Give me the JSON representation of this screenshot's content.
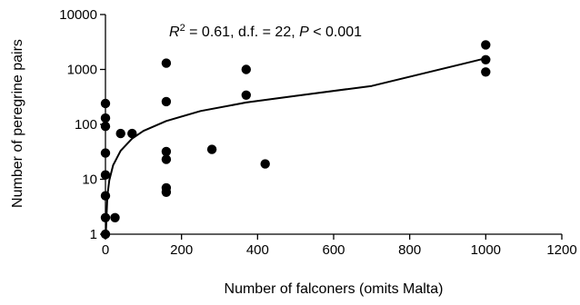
{
  "chart_data": {
    "type": "scatter",
    "title": "",
    "xlabel": "Number of falconers (omits Malta)",
    "ylabel": "Number of peregrine pairs",
    "xlim": [
      0,
      1200
    ],
    "ylim": [
      1,
      10000
    ],
    "y_scale": "log",
    "x_ticks": [
      0,
      200,
      400,
      600,
      800,
      1000,
      1200
    ],
    "x_tick_labels": [
      "0",
      "200",
      "400",
      "600",
      "800",
      "1000",
      "1200"
    ],
    "y_ticks": [
      1,
      10,
      100,
      1000,
      10000
    ],
    "y_tick_labels": [
      "1",
      "10",
      "100",
      "1000",
      "10000"
    ],
    "grid": false,
    "legend": "none",
    "annotation": {
      "r_symbol": "R",
      "r_exponent": "2",
      "r_value": " = 0.61, d.f. = 22, ",
      "p_symbol": "P",
      "p_value": " < 0.001"
    },
    "points": [
      {
        "x": 0,
        "y": 240
      },
      {
        "x": 0,
        "y": 130
      },
      {
        "x": 0,
        "y": 92
      },
      {
        "x": 0,
        "y": 30
      },
      {
        "x": 0,
        "y": 12
      },
      {
        "x": 0,
        "y": 5
      },
      {
        "x": 0,
        "y": 2
      },
      {
        "x": 0,
        "y": 1
      },
      {
        "x": 25,
        "y": 2
      },
      {
        "x": 40,
        "y": 68
      },
      {
        "x": 70,
        "y": 68
      },
      {
        "x": 160,
        "y": 1300
      },
      {
        "x": 160,
        "y": 260
      },
      {
        "x": 160,
        "y": 32
      },
      {
        "x": 160,
        "y": 23
      },
      {
        "x": 160,
        "y": 7
      },
      {
        "x": 160,
        "y": 5.8
      },
      {
        "x": 280,
        "y": 35
      },
      {
        "x": 370,
        "y": 1000
      },
      {
        "x": 370,
        "y": 340
      },
      {
        "x": 420,
        "y": 19
      },
      {
        "x": 1000,
        "y": 2800
      },
      {
        "x": 1000,
        "y": 1500
      },
      {
        "x": 1000,
        "y": 900
      }
    ],
    "fit_curve": {
      "x": [
        1,
        5,
        10,
        20,
        40,
        70,
        100,
        160,
        250,
        370,
        500,
        700,
        1000
      ],
      "y": [
        1,
        5,
        9.5,
        18,
        33,
        55,
        76,
        115,
        175,
        250,
        330,
        500,
        1600
      ]
    },
    "colors": {
      "points": "#000000",
      "curve": "#000000",
      "axes": "#000000"
    }
  }
}
